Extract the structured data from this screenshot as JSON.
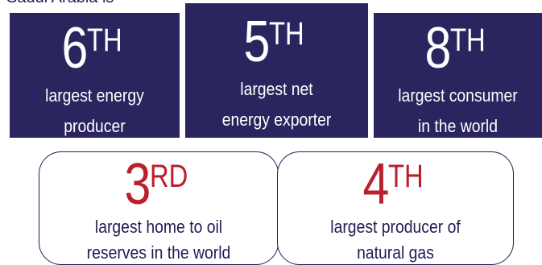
{
  "header": {
    "cut_text": "Saudi Arabia is"
  },
  "colors": {
    "box_fill": "#2a255f",
    "rank_red": "#bb1f2e",
    "text_navy": "#1f1d57"
  },
  "stats": [
    {
      "rank": "6",
      "suffix": "TH",
      "line1": "largest energy",
      "line2": "producer"
    },
    {
      "rank": "5",
      "suffix": "TH",
      "line1": "largest net",
      "line2": "energy exporter"
    },
    {
      "rank": "8",
      "suffix": "TH",
      "line1": "largest consumer",
      "line2": "in the world"
    },
    {
      "rank": "3",
      "suffix": "RD",
      "line1": "largest home to oil",
      "line2": "reserves in the world"
    },
    {
      "rank": "4",
      "suffix": "TH",
      "line1": "largest producer of",
      "line2": "natural gas"
    }
  ]
}
